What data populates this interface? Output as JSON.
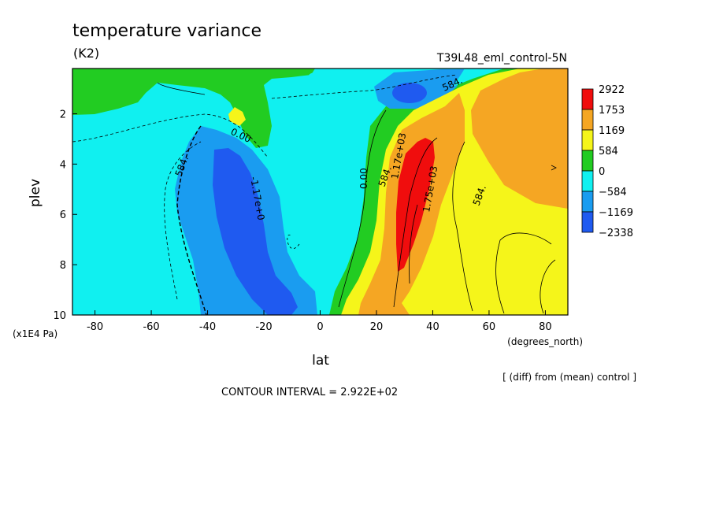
{
  "chart_data": {
    "type": "heatmap",
    "title": "temperature variance",
    "units": "(K2)",
    "run_label": "T39L48_eml_control-5N",
    "xlabel": "lat",
    "x_unit": "(degrees_north)",
    "ylabel": "plev",
    "y_unit": "(x1E4 Pa)",
    "x_ticks": [
      "-80",
      "-60",
      "-40",
      "-20",
      "0",
      "20",
      "40",
      "60",
      "80"
    ],
    "y_ticks": [
      "2",
      "4",
      "6",
      "8",
      "10"
    ],
    "xlim": [
      -88,
      88
    ],
    "ylim": [
      0.2,
      10
    ],
    "y_inverted": true,
    "note": "[ (diff) from (mean) control ]",
    "contour_interval": "CONTOUR INTERVAL = 2.922E+02",
    "colorbar": {
      "labels": [
        "2922",
        "1753",
        "1169",
        "584",
        "0",
        "−584",
        "−1169",
        "−2338"
      ],
      "colors": [
        "#f00d0d",
        "#f5a623",
        "#f5f51a",
        "#22cc22",
        "#10f0f0",
        "#1a9cf0",
        "#1f5af0",
        "#ffffff"
      ]
    },
    "contour_labels": [
      "0.00",
      "584.",
      "-1.17e+0",
      "0.00",
      "584.",
      "1.17e+03",
      "1.75e+03",
      "584.",
      "584."
    ],
    "regions": {
      "max_positive": 1753,
      "max_positive_location": {
        "lat": 32,
        "plev": 5.5
      },
      "min_negative": -1169,
      "min_negative_location": {
        "lat": -28,
        "plev": 5.5
      }
    }
  }
}
